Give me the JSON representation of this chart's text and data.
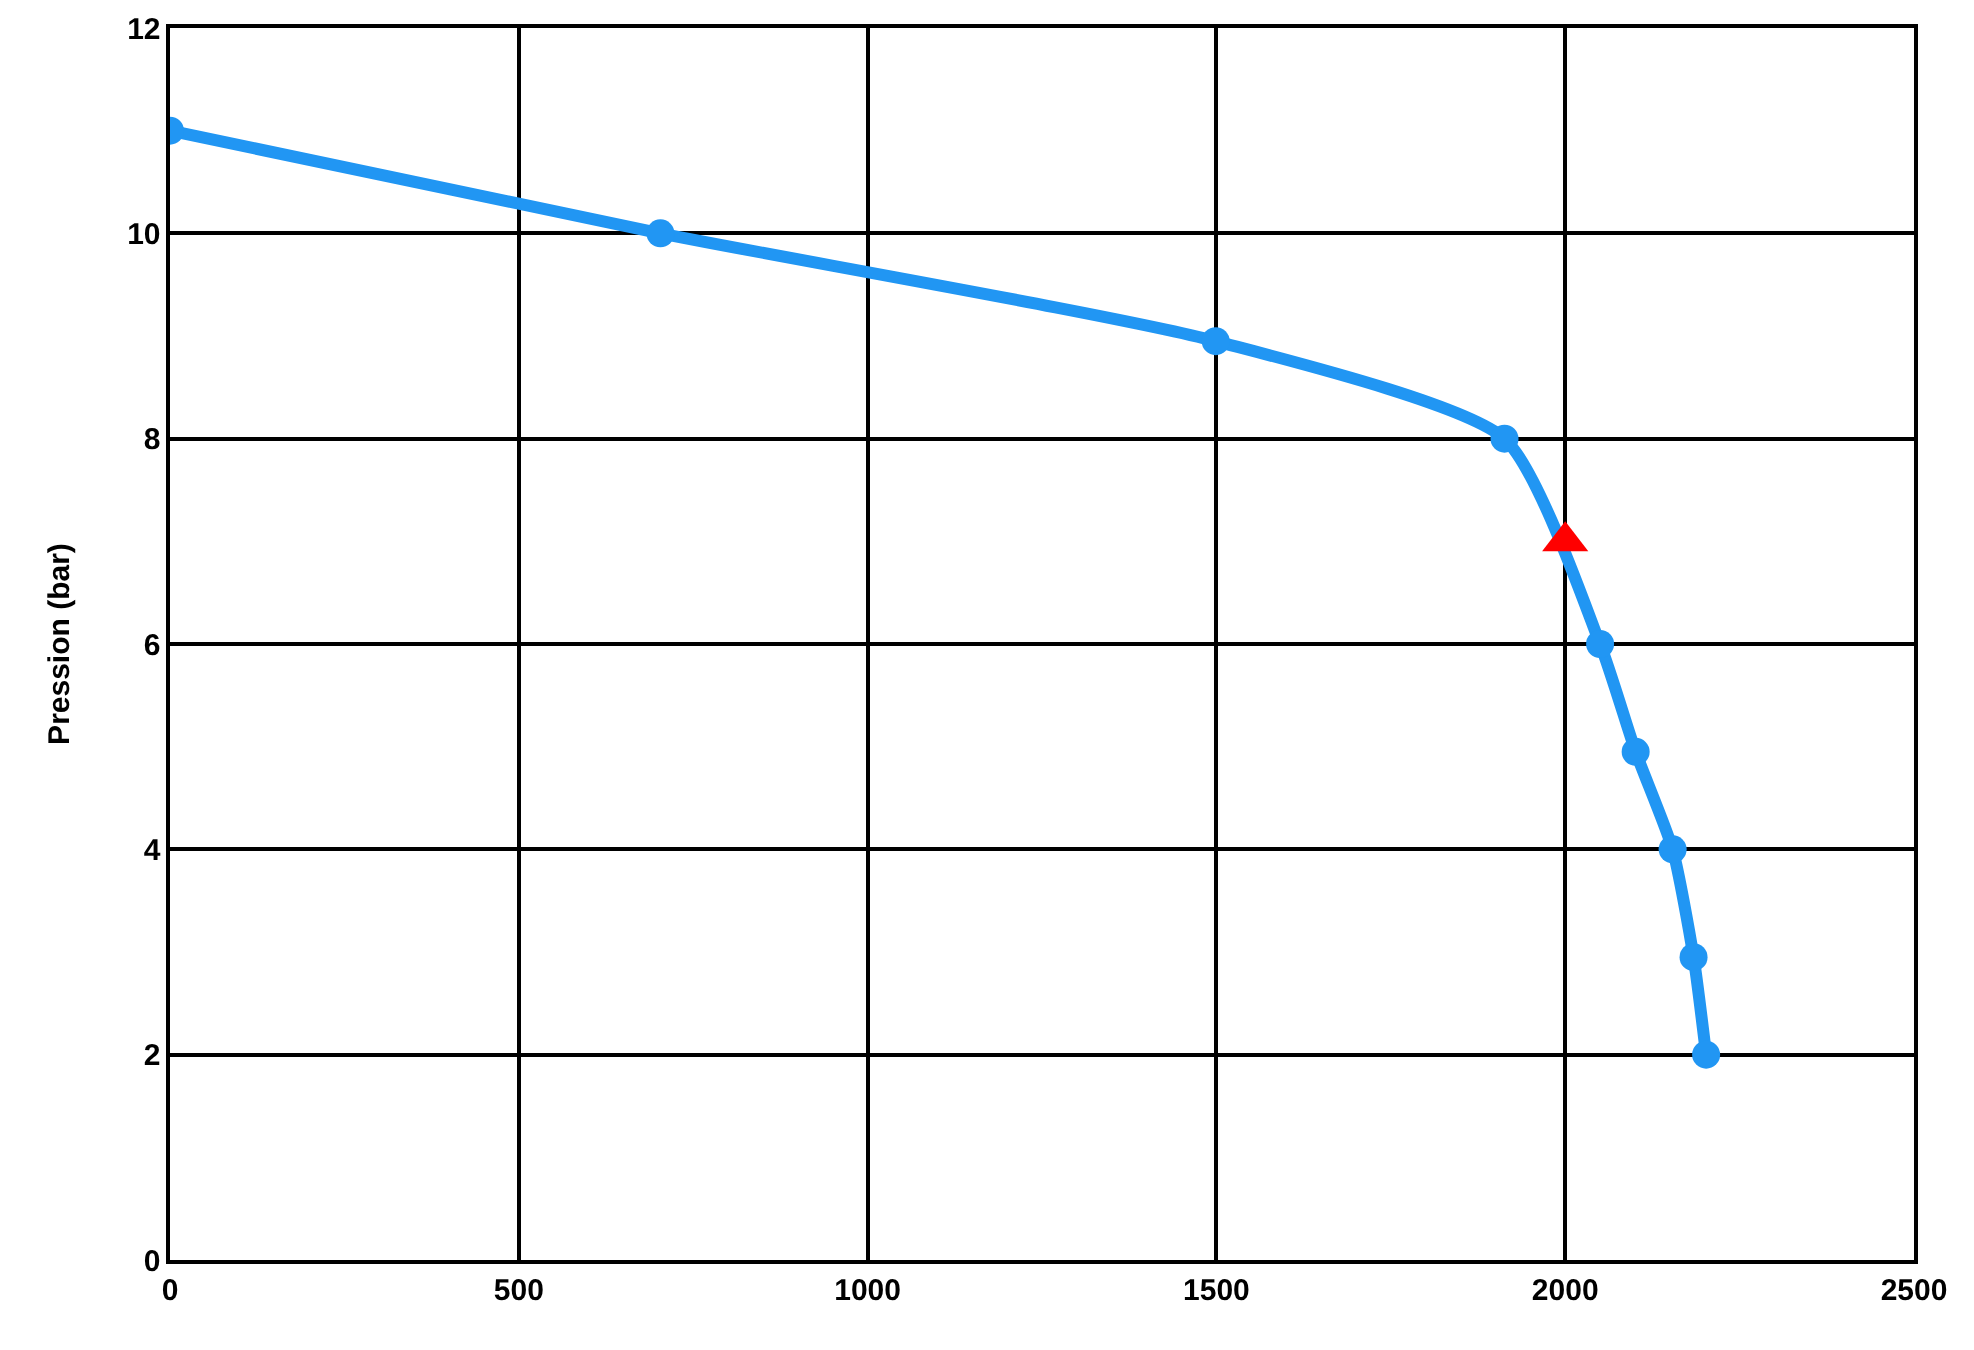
{
  "chart_data": {
    "type": "line",
    "ylabel": "Pression (bar)",
    "series": [
      {
        "color": "#2196f3",
        "marker": "circle",
        "x": [
          0,
          703,
          1499,
          1913,
          2050,
          2101,
          2154,
          2184,
          2202
        ],
        "values": [
          11,
          10,
          8.95,
          8,
          6,
          4.95,
          4,
          2.95,
          2
        ]
      },
      {
        "type": "scatter",
        "color": "#ff0000",
        "marker": "triangle",
        "x": [
          2000
        ],
        "values": [
          7
        ]
      }
    ],
    "xlim": [
      0,
      2500
    ],
    "xticks": [
      0,
      500,
      1000,
      1500,
      2000,
      2500
    ],
    "ylim": [
      0,
      12
    ],
    "yticks": [
      0,
      2,
      4,
      6,
      8,
      10,
      12
    ],
    "grid": true
  }
}
